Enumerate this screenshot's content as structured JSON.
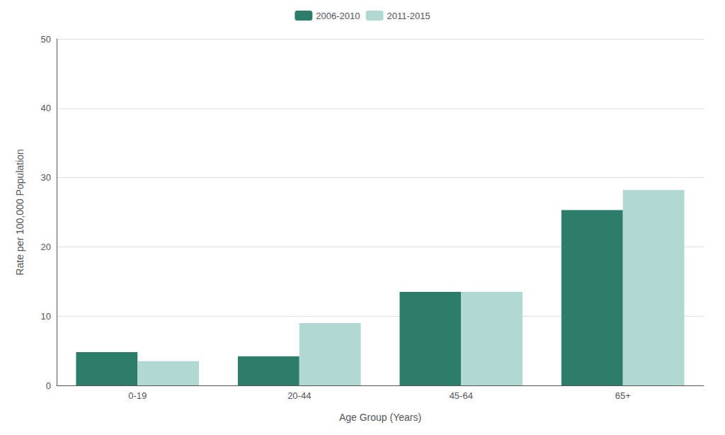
{
  "chart_data": {
    "type": "bar",
    "xlabel": "Age Group (Years)",
    "ylabel": "Rate per 100,000 Population",
    "categories": [
      "0-19",
      "20-44",
      "45-64",
      "65+"
    ],
    "series": [
      {
        "name": "2006-2010",
        "color": "#2d7d6b",
        "values": [
          4.8,
          4.2,
          13.5,
          25.3
        ]
      },
      {
        "name": "2011-2015",
        "color": "#b0d9d2",
        "values": [
          3.5,
          9.0,
          13.5,
          28.2
        ]
      }
    ],
    "ylim": [
      0,
      50
    ],
    "yticks": [
      0,
      10,
      20,
      30,
      40,
      50
    ],
    "grid": true,
    "legend": "top"
  }
}
